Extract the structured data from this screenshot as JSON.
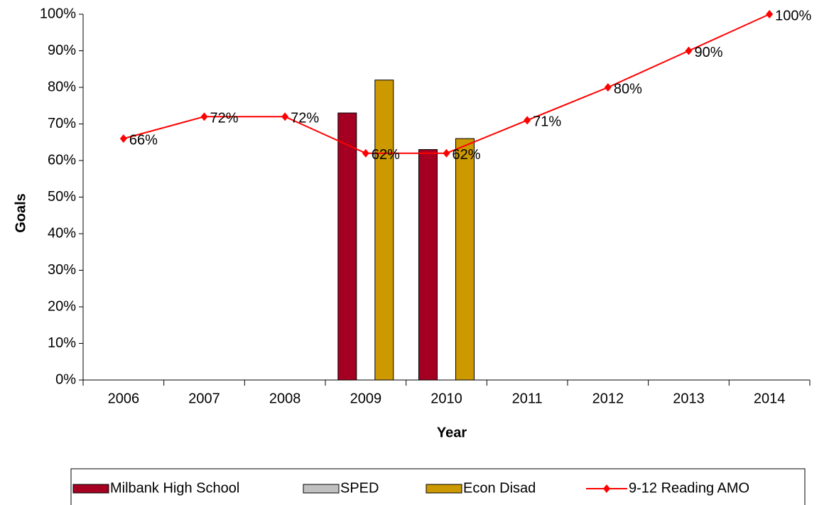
{
  "chart_data": {
    "type": "bar-line",
    "x_label": "Year",
    "y_label": "Goals",
    "categories": [
      "2006",
      "2007",
      "2008",
      "2009",
      "2010",
      "2011",
      "2012",
      "2013",
      "2014"
    ],
    "ylim": [
      0,
      100
    ],
    "yticks": [
      {
        "value": 0,
        "label": "0%"
      },
      {
        "value": 10,
        "label": "10%"
      },
      {
        "value": 20,
        "label": "20%"
      },
      {
        "value": 30,
        "label": "30%"
      },
      {
        "value": 40,
        "label": "40%"
      },
      {
        "value": 50,
        "label": "50%"
      },
      {
        "value": 60,
        "label": "60%"
      },
      {
        "value": 70,
        "label": "70%"
      },
      {
        "value": 80,
        "label": "80%"
      },
      {
        "value": 90,
        "label": "90%"
      },
      {
        "value": 100,
        "label": "100%"
      }
    ],
    "grid": false,
    "legend": "bottom",
    "series": [
      {
        "name": "Milbank High School",
        "type": "bar",
        "color": "#a50021",
        "values": [
          null,
          null,
          null,
          73,
          63,
          null,
          null,
          null,
          null
        ]
      },
      {
        "name": "SPED",
        "type": "bar",
        "color": "#c0c0c0",
        "values": [
          null,
          null,
          null,
          null,
          null,
          null,
          null,
          null,
          null
        ]
      },
      {
        "name": "Econ Disad",
        "type": "bar",
        "color": "#cc9900",
        "values": [
          null,
          null,
          null,
          82,
          66,
          null,
          null,
          null,
          null
        ]
      },
      {
        "name": "9-12 Reading AMO",
        "type": "line",
        "color": "#ff0000",
        "values": [
          66,
          72,
          72,
          62,
          62,
          71,
          80,
          90,
          100
        ],
        "value_labels": [
          "66%",
          "72%",
          "72%",
          "62%",
          "62%",
          "71%",
          "80%",
          "90%",
          "100%"
        ]
      }
    ]
  }
}
